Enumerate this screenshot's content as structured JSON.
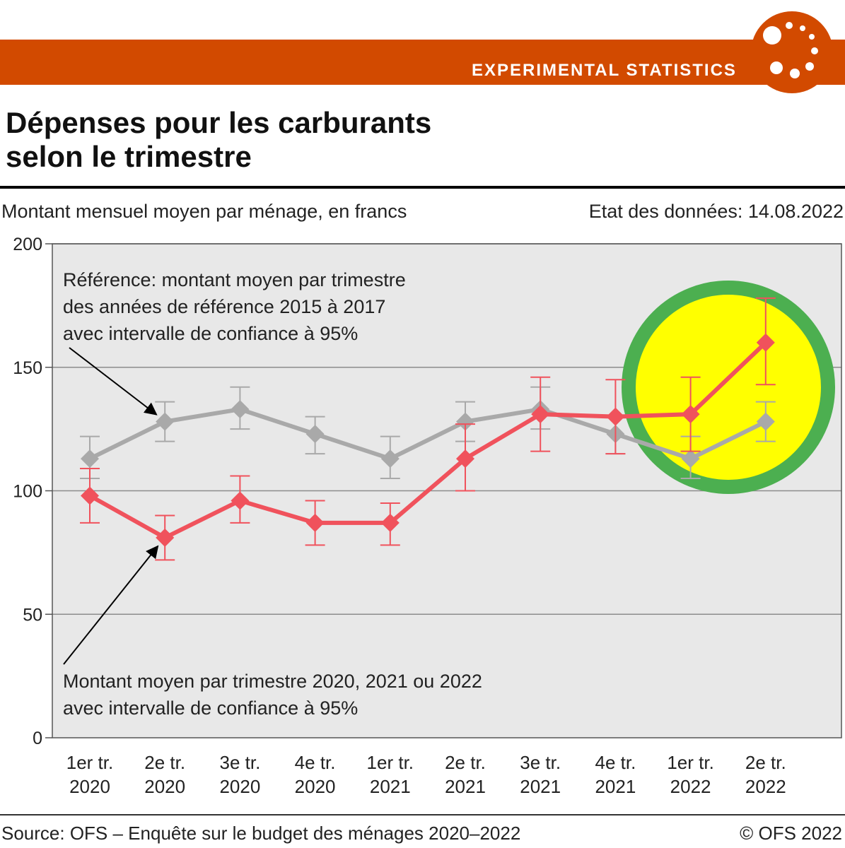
{
  "banner": {
    "label": "EXPERIMENTAL STATISTICS",
    "color": "#d24a00"
  },
  "title": {
    "line1": "Dépenses pour les carburants",
    "line2": "selon le trimestre"
  },
  "subtitle": "Montant mensuel moyen par ménage, en francs",
  "data_date": "Etat des données: 14.08.2022",
  "source": "Source: OFS – Enquête sur le budget des ménages 2020–2022",
  "copyright": "© OFS 2022",
  "chart_data": {
    "type": "line",
    "ylim": [
      0,
      200
    ],
    "yticks": [
      0,
      50,
      100,
      150,
      200
    ],
    "grid": true,
    "categories": [
      [
        "1er tr.",
        "2020"
      ],
      [
        "2e tr.",
        "2020"
      ],
      [
        "3e tr.",
        "2020"
      ],
      [
        "4e tr.",
        "2020"
      ],
      [
        "1er tr.",
        "2021"
      ],
      [
        "2e tr.",
        "2021"
      ],
      [
        "3e tr.",
        "2021"
      ],
      [
        "4e tr.",
        "2021"
      ],
      [
        "1er tr.",
        "2022"
      ],
      [
        "2e tr.",
        "2022"
      ]
    ],
    "series": [
      {
        "key": "reference",
        "color": "#a9a9a9",
        "values": [
          113,
          128,
          133,
          123,
          113,
          128,
          133,
          123,
          113,
          128
        ],
        "low": [
          105,
          120,
          125,
          115,
          105,
          120,
          125,
          115,
          105,
          120
        ],
        "high": [
          122,
          136,
          142,
          130,
          122,
          136,
          142,
          130,
          122,
          136
        ]
      },
      {
        "key": "current",
        "color": "#f0525c",
        "values": [
          98,
          81,
          96,
          87,
          87,
          113,
          131,
          130,
          131,
          160
        ],
        "low": [
          87,
          72,
          87,
          78,
          78,
          100,
          116,
          115,
          116,
          143
        ],
        "high": [
          109,
          90,
          106,
          96,
          95,
          127,
          146,
          145,
          146,
          178
        ]
      }
    ],
    "annotations": [
      {
        "lines": [
          "Référence: montant moyen par trimestre",
          "des années de référence 2015 à 2017",
          "avec intervalle de confiance à 95%"
        ],
        "target_series": "reference",
        "target_index": 1
      },
      {
        "lines": [
          "Montant moyen par trimestre 2020, 2021 ou 2022",
          "avec intervalle de confiance à 95%"
        ],
        "target_series": "current",
        "target_index": 1
      }
    ],
    "highlight": {
      "fill": "#ffff00",
      "stroke": "#4caf50"
    }
  }
}
